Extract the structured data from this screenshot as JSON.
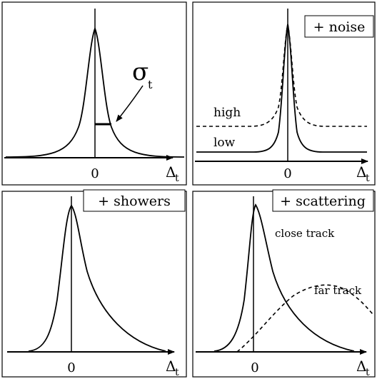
{
  "panels": [
    {
      "id": "baseline",
      "tag": null,
      "zero_label": "0",
      "axis_symbol": "Δ",
      "axis_subscript": "t",
      "annotations": {
        "sigma_symbol": "σ",
        "sigma_subscript": "t"
      }
    },
    {
      "id": "noise",
      "tag": "+ noise",
      "zero_label": "0",
      "axis_symbol": "Δ",
      "axis_subscript": "t",
      "curve_labels": {
        "high": "high",
        "low": "low"
      }
    },
    {
      "id": "showers",
      "tag": "+ showers",
      "zero_label": "0",
      "axis_symbol": "Δ",
      "axis_subscript": "t"
    },
    {
      "id": "scattering",
      "tag": "+ scattering",
      "zero_label": "0",
      "axis_symbol": "Δ",
      "axis_subscript": "t",
      "curve_labels": {
        "close": "close track",
        "far": "far track"
      }
    }
  ],
  "colors": {
    "ink": "#000000",
    "background": "#ffffff"
  }
}
